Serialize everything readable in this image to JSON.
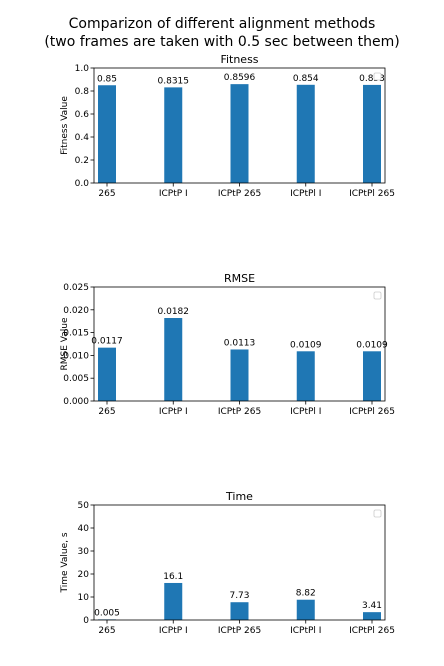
{
  "figure": {
    "title_line1": "Comparizon of different alignment methods",
    "title_line2": "(two frames are taken with 0.5 sec between them)"
  },
  "chart_data": [
    {
      "type": "bar",
      "title": "Fitness",
      "ylabel": "Fitness Value",
      "xlabel": "",
      "categories": [
        "265",
        "ICPtP I",
        "ICPtP 265",
        "ICPtPl I",
        "ICPtPl 265"
      ],
      "values": [
        0.85,
        0.8315,
        0.8596,
        0.854,
        0.853
      ],
      "data_labels": [
        "0.85",
        "0.8315",
        "0.8596",
        "0.854",
        "0.853"
      ],
      "ylim": [
        0,
        1.0
      ],
      "yticks": [
        0.0,
        0.2,
        0.4,
        0.6,
        0.8,
        1.0
      ],
      "ytick_labels": [
        "0.0",
        "0.2",
        "0.4",
        "0.6",
        "0.8",
        "1.0"
      ],
      "legend": "top-right",
      "grid": false,
      "bar_color": "#1f77b4"
    },
    {
      "type": "bar",
      "title": "RMSE",
      "ylabel": "RMSE Value",
      "xlabel": "",
      "categories": [
        "265",
        "ICPtP I",
        "ICPtP 265",
        "ICPtPl I",
        "ICPtPl 265"
      ],
      "values": [
        0.0117,
        0.0182,
        0.0113,
        0.0109,
        0.0109
      ],
      "data_labels": [
        "0.0117",
        "0.0182",
        "0.0113",
        "0.0109",
        "0.0109"
      ],
      "ylim": [
        0,
        0.025
      ],
      "yticks": [
        0.0,
        0.005,
        0.01,
        0.015,
        0.02,
        0.025
      ],
      "ytick_labels": [
        "0.000",
        "0.005",
        "0.010",
        "0.015",
        "0.020",
        "0.025"
      ],
      "legend": "top-right",
      "grid": false,
      "bar_color": "#1f77b4"
    },
    {
      "type": "bar",
      "title": "Time",
      "ylabel": "Time Value, s",
      "xlabel": "",
      "categories": [
        "265",
        "ICPtP I",
        "ICPtP 265",
        "ICPtPl I",
        "ICPtPl 265"
      ],
      "values": [
        0.005,
        16.1,
        7.73,
        8.82,
        3.41
      ],
      "data_labels": [
        "0.005",
        "16.1",
        "7.73",
        "8.82",
        "3.41"
      ],
      "ylim": [
        0,
        50
      ],
      "yticks": [
        0,
        10,
        20,
        30,
        40,
        50
      ],
      "ytick_labels": [
        "0",
        "10",
        "20",
        "30",
        "40",
        "50"
      ],
      "legend": "top-right",
      "grid": false,
      "bar_color": "#1f77b4"
    }
  ]
}
